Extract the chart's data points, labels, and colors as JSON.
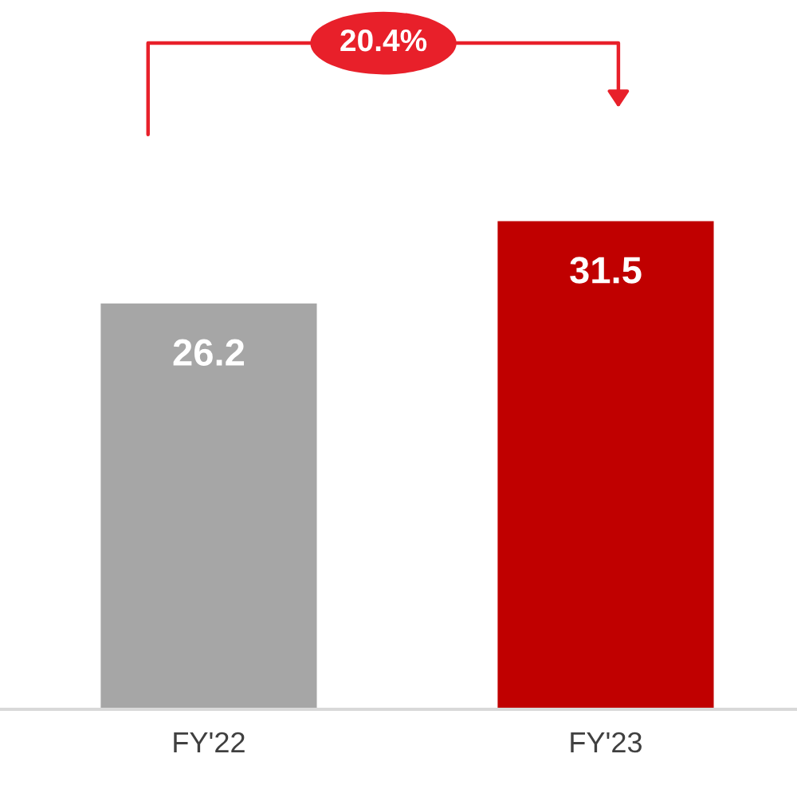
{
  "chart_data": {
    "type": "bar",
    "categories": [
      "FY'22",
      "FY'23"
    ],
    "values": [
      26.2,
      31.5
    ],
    "colors": [
      "#a6a6a6",
      "#c00000"
    ],
    "data_labels": true,
    "annotations": [
      "20.4%"
    ]
  }
}
